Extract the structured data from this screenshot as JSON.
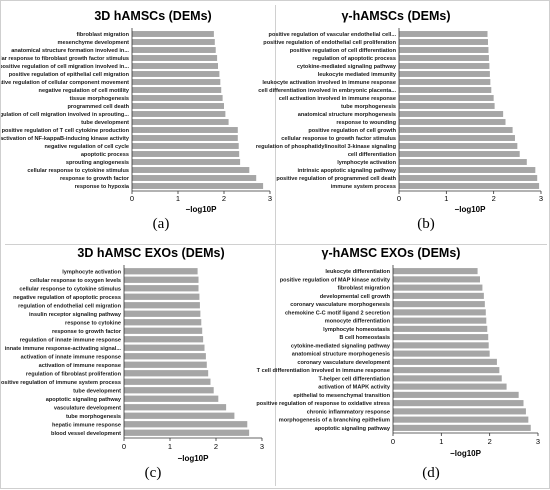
{
  "chart_data": [
    {
      "type": "bar",
      "orientation": "horizontal",
      "panel_label": "(a)",
      "title": "3D hAMSCs (DEMs)",
      "xlabel": "−log10P",
      "xlim": [
        0,
        3
      ],
      "x_ticks": [
        "0",
        "1",
        "2",
        "3"
      ],
      "grid": false,
      "bar_color": "#a6a6a6",
      "categories": [
        "fibroblast migration",
        "mesenchyme development",
        "anatomical structure formation involved in...",
        "cellular response to fibroblast growth factor stimulus",
        "positive regulation of cell migration involved in...",
        "positive regulation of epithelial cell migration",
        "negative regulation of cellular component movement",
        "negative regulation of cell motility",
        "tissue morphogenesis",
        "programmed cell death",
        "regulation of cell migration involved in sprouting...",
        "tube development",
        "positive regulation of T cell cytokine production",
        "activation of NF-kappaB-inducing kinase activity",
        "negative regulation of cell cycle",
        "apoptotic process",
        "sprouting angiogenesis",
        "cellular response to cytokine stimulus",
        "response to growth factor",
        "response to hypoxia"
      ],
      "values": [
        1.78,
        1.8,
        1.82,
        1.85,
        1.87,
        1.9,
        1.92,
        1.94,
        1.97,
        2.0,
        2.03,
        2.1,
        2.3,
        2.3,
        2.32,
        2.33,
        2.35,
        2.55,
        2.7,
        2.85
      ]
    },
    {
      "type": "bar",
      "orientation": "horizontal",
      "panel_label": "(b)",
      "title": "γ-hAMSCs (DEMs)",
      "xlabel": "−log10P",
      "xlim": [
        0,
        3
      ],
      "x_ticks": [
        "0",
        "1",
        "2",
        "3"
      ],
      "grid": false,
      "bar_color": "#a6a6a6",
      "categories": [
        "positive regulation of vascular endothelial cell...",
        "positive regulation of endothelial cell proliferation",
        "positive regulation of cell differentiation",
        "regulation of apoptotic process",
        "cytokine-mediated signaling pathway",
        "leukocyte mediated immunity",
        "leukocyte activation involved in immune response",
        "cell differentiation involved in embryonic placenta...",
        "cell activation involved in immune response",
        "tube morphogenesis",
        "anatomical structure morphogenesis",
        "response to wounding",
        "positive regulation of cell growth",
        "cellular response to growth factor stimulus",
        "regulation of phosphatidylinositol 3-kinase signaling",
        "cell differentiation",
        "lymphocyte activation",
        "intrinsic apoptotic signaling pathway",
        "positive regulation of programmed cell death",
        "immune system process"
      ],
      "values": [
        1.87,
        1.88,
        1.89,
        1.9,
        1.91,
        1.92,
        1.93,
        1.95,
        2.0,
        2.02,
        2.2,
        2.25,
        2.4,
        2.45,
        2.5,
        2.55,
        2.7,
        2.88,
        2.92,
        2.96
      ]
    },
    {
      "type": "bar",
      "orientation": "horizontal",
      "panel_label": "(c)",
      "title": "3D hAMSC EXOs (DEMs)",
      "xlabel": "−log10P",
      "xlim": [
        0,
        3
      ],
      "x_ticks": [
        "0",
        "1",
        "2",
        "3"
      ],
      "grid": false,
      "bar_color": "#a6a6a6",
      "categories": [
        "lymphocyte activation",
        "cellular response to oxygen levels",
        "cellular response to cytokine stimulus",
        "negative regulation of apoptotic process",
        "regulation of endothelial cell migration",
        "insulin receptor signaling pathway",
        "response to cytokine",
        "response to growth factor",
        "regulation of innate immune response",
        "innate immune response-activating signal...",
        "activation of innate immune response",
        "activation of immune response",
        "regulation of fibroblast proliferation",
        "positive regulation of immune system process",
        "tube development",
        "apoptotic signaling pathway",
        "vasculature development",
        "tube morphogenesis",
        "hepatic immune response",
        "blood vessel development"
      ],
      "values": [
        1.6,
        1.62,
        1.62,
        1.64,
        1.65,
        1.66,
        1.68,
        1.7,
        1.72,
        1.75,
        1.78,
        1.8,
        1.83,
        1.88,
        1.95,
        2.05,
        2.22,
        2.4,
        2.68,
        2.72
      ]
    },
    {
      "type": "bar",
      "orientation": "horizontal",
      "panel_label": "(d)",
      "title": "γ-hAMSC EXOs (DEMs)",
      "xlabel": "−log10P",
      "xlim": [
        0,
        3
      ],
      "x_ticks": [
        "0",
        "1",
        "2",
        "3"
      ],
      "grid": false,
      "bar_color": "#a6a6a6",
      "categories": [
        "leukocyte differentiation",
        "positive regulation of MAP kinase activity",
        "fibroblast migration",
        "developmental cell growth",
        "coronary vasculature morphogenesis",
        "chemokine C-C motif ligand 2 secretion",
        "monocyte differentiation",
        "lymphocyte homeostasis",
        "B cell homeostasis",
        "cytokine-mediated signaling pathway",
        "anatomical structure morphogenesis",
        "coronary vasculature development",
        "T cell differentiation involved in immune response",
        "T-helper cell differentiation",
        "activation of MAPK activity",
        "epithelial to mesenchymal transition",
        "positive regulation of response to oxidative stress",
        "chronic inflammatory response",
        "morphogenesis of a branching epithelium",
        "apoptotic signaling pathway"
      ],
      "values": [
        1.75,
        1.8,
        1.85,
        1.88,
        1.9,
        1.92,
        1.93,
        1.95,
        1.97,
        1.98,
        2.0,
        2.15,
        2.2,
        2.25,
        2.35,
        2.6,
        2.7,
        2.75,
        2.8,
        2.85
      ]
    }
  ]
}
